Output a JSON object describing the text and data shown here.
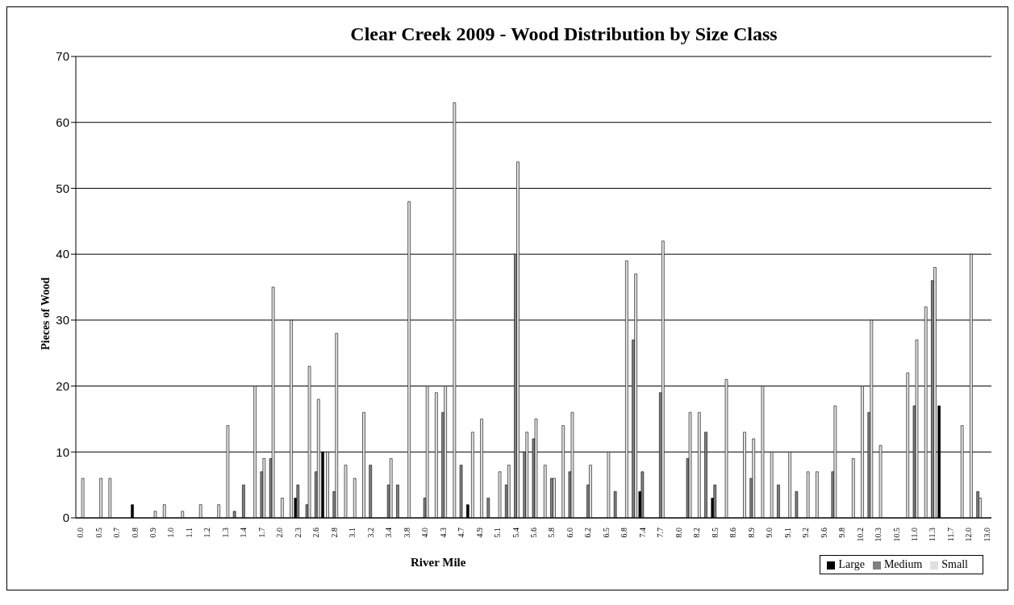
{
  "chart_data": {
    "type": "bar",
    "title": "Clear Creek 2009 - Wood Distribution by Size Class",
    "xlabel": "River Mile",
    "ylabel": "Pieces of Wood",
    "categories": [
      "0.0",
      null,
      "0.5",
      null,
      "0.7",
      null,
      "0.8",
      null,
      "0.9",
      null,
      "1.0",
      null,
      "1.1",
      null,
      "1.2",
      null,
      "1.3",
      null,
      "1.4",
      null,
      "1.7",
      null,
      "2.0",
      null,
      "2.3",
      null,
      "2.6",
      null,
      "2.8",
      null,
      "3.1",
      null,
      "3.2",
      null,
      "3.4",
      null,
      "3.8",
      null,
      "4.0",
      null,
      "4.3",
      null,
      "4.7",
      null,
      "4.9",
      null,
      "5.1",
      null,
      "5.4",
      null,
      "5.6",
      null,
      "5.8",
      null,
      "6.0",
      null,
      "6.2",
      null,
      "6.5",
      null,
      "6.8",
      null,
      "7.4",
      null,
      "7.7",
      null,
      "8.0",
      null,
      "8.2",
      null,
      "8.5",
      null,
      "8.6",
      null,
      "8.9",
      null,
      "9.0",
      null,
      "9.1",
      null,
      "9.2",
      null,
      "9.6",
      null,
      "9.8",
      null,
      "10.2",
      null,
      "10.3",
      null,
      "10.5",
      null,
      "11.0",
      null,
      "11.3",
      null,
      "11.7",
      null,
      "12.0",
      null,
      "13.0"
    ],
    "series": [
      {
        "name": "Large",
        "color": "#000000",
        "values": [
          0,
          0,
          0,
          0,
          0,
          0,
          2,
          0,
          0,
          0,
          0,
          0,
          0,
          0,
          0,
          0,
          0,
          0,
          0,
          0,
          0,
          0,
          0,
          0,
          3,
          0,
          0,
          10,
          0,
          0,
          0,
          0,
          0,
          0,
          0,
          0,
          0,
          0,
          0,
          0,
          0,
          0,
          0,
          2,
          0,
          0,
          0,
          0,
          0,
          0,
          0,
          0,
          0,
          0,
          0,
          0,
          0,
          0,
          0,
          0,
          0,
          0,
          4,
          0,
          0,
          0,
          0,
          0,
          0,
          0,
          3,
          0,
          0,
          0,
          0,
          0,
          0,
          0,
          0,
          0,
          0,
          0,
          0,
          0,
          0,
          0,
          0,
          0,
          0,
          0,
          0,
          0,
          0,
          0,
          0,
          17,
          0,
          0,
          0,
          0,
          0
        ]
      },
      {
        "name": "Medium",
        "color": "#808080",
        "values": [
          0,
          0,
          0,
          0,
          0,
          0,
          0,
          0,
          0,
          0,
          0,
          0,
          0,
          0,
          0,
          0,
          0,
          1,
          5,
          0,
          7,
          9,
          0,
          0,
          5,
          2,
          7,
          0,
          4,
          0,
          0,
          0,
          8,
          0,
          5,
          5,
          0,
          0,
          3,
          0,
          16,
          0,
          8,
          0,
          0,
          3,
          0,
          5,
          40,
          10,
          12,
          0,
          6,
          0,
          7,
          0,
          5,
          0,
          0,
          4,
          0,
          27,
          7,
          0,
          19,
          0,
          0,
          9,
          0,
          13,
          5,
          0,
          0,
          0,
          6,
          0,
          0,
          5,
          0,
          4,
          0,
          0,
          0,
          7,
          0,
          0,
          0,
          16,
          0,
          0,
          0,
          0,
          17,
          0,
          36,
          0,
          0,
          0,
          0,
          4,
          0
        ]
      },
      {
        "name": "Small",
        "color": "#e0e0e0",
        "values": [
          6,
          0,
          6,
          6,
          0,
          0,
          0,
          0,
          1,
          2,
          0,
          1,
          0,
          2,
          0,
          2,
          14,
          0,
          0,
          20,
          9,
          35,
          3,
          30,
          0,
          23,
          18,
          10,
          28,
          8,
          6,
          16,
          0,
          0,
          9,
          0,
          48,
          0,
          20,
          19,
          20,
          63,
          0,
          13,
          15,
          0,
          7,
          8,
          54,
          13,
          15,
          8,
          6,
          14,
          16,
          0,
          8,
          0,
          10,
          0,
          39,
          37,
          0,
          0,
          42,
          0,
          0,
          16,
          16,
          0,
          0,
          21,
          0,
          13,
          12,
          20,
          10,
          0,
          10,
          0,
          7,
          7,
          0,
          17,
          0,
          9,
          20,
          30,
          11,
          0,
          0,
          22,
          27,
          32,
          38,
          0,
          0,
          14,
          40,
          3,
          0
        ]
      }
    ],
    "ylim": [
      0,
      70
    ],
    "yticks": [
      0,
      10,
      20,
      30,
      40,
      50,
      60,
      70
    ],
    "grid": "y",
    "legend": "bottom right"
  }
}
